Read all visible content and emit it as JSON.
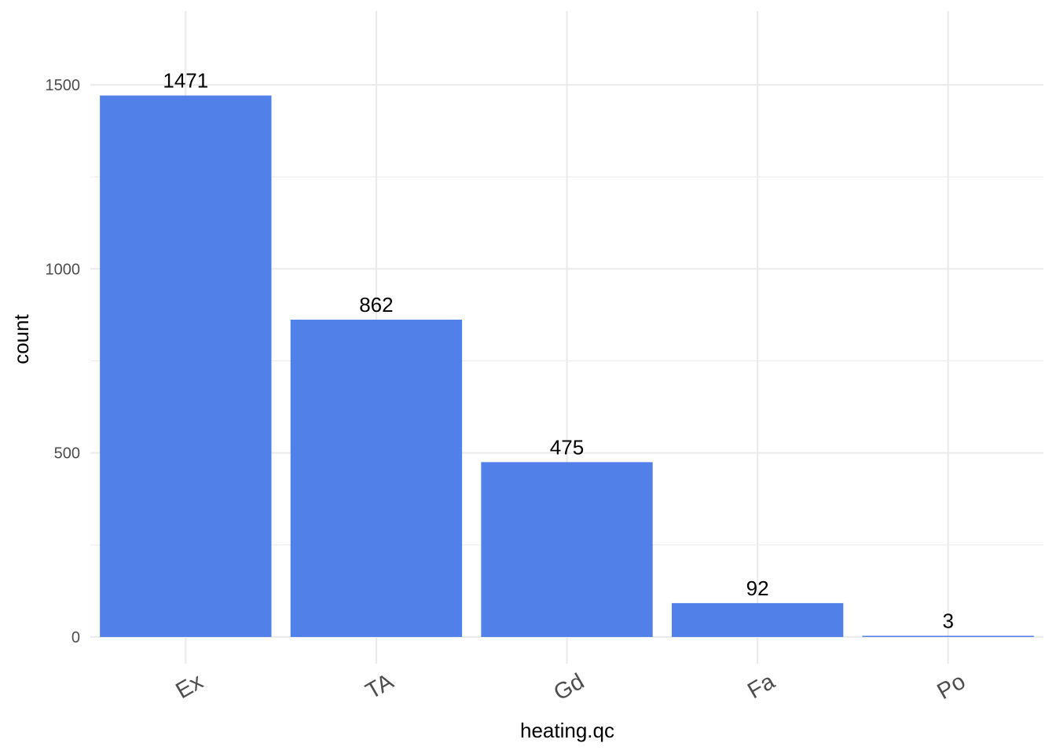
{
  "chart_data": {
    "type": "bar",
    "categories": [
      "Ex",
      "TA",
      "Gd",
      "Fa",
      "Po"
    ],
    "values": [
      1471,
      862,
      475,
      92,
      3
    ],
    "data_labels": [
      "1471",
      "862",
      "475",
      "92",
      "3"
    ],
    "xlabel": "heating.qc",
    "ylabel": "count",
    "ylim": [
      0,
      1500
    ],
    "y_ticks": [
      0,
      500,
      1000,
      1500
    ],
    "y_tick_labels": [
      "0",
      "500",
      "1000",
      "1500"
    ],
    "grid": true,
    "x_tick_rotation_deg": 30,
    "legend": "none",
    "colors": {
      "bar": "#5280e9",
      "grid": "#ebebeb",
      "tick_text": "#4d4d4d",
      "label_text": "#000000",
      "background": "#ffffff"
    }
  }
}
